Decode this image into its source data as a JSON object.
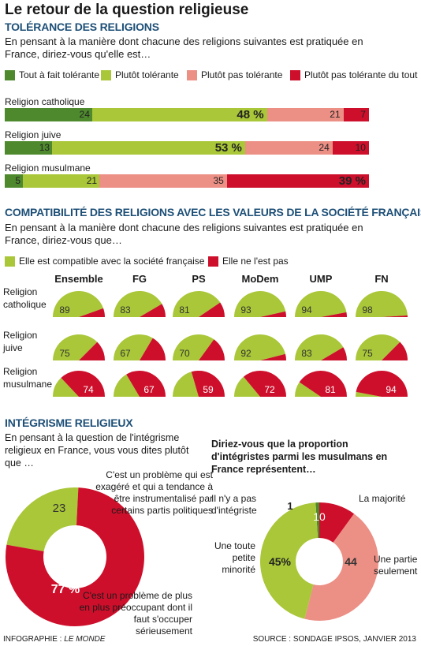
{
  "title": "Le retour de la question religieuse",
  "colors": {
    "dark_green": "#4e8a2d",
    "green": "#a9c738",
    "pink": "#ec8f85",
    "red": "#cd0f2b",
    "blue": "#1d4f77"
  },
  "section1": {
    "heading": "TOLÉRANCE DES RELIGIONS",
    "question": "En pensant à la manière dont chacune des religions suivantes est pratiquée en France, diriez-vous qu'elle est…",
    "legend": [
      "Tout à fait tolérante",
      "Plutôt tolérante",
      "Plutôt pas tolérante",
      "Plutôt pas tolérante du tout"
    ]
  },
  "section2": {
    "heading": "COMPATIBILITÉ DES RELIGIONS AVEC LES VALEURS DE LA SOCIÉTÉ FRANÇAISE",
    "question": "En pensant à la manière dont chacune des religions suivantes est pratiquée en France, diriez-vous que…",
    "legend": [
      "Elle est compatible avec la société française",
      "Elle ne l'est pas"
    ],
    "columns": [
      "Ensemble",
      "FG",
      "PS",
      "MoDem",
      "UMP",
      "FN"
    ],
    "rows": [
      "Religion catholique",
      "Religion juive",
      "Religion musulmane"
    ]
  },
  "section3": {
    "heading": "INTÉGRISME RELIGIEUX",
    "q1": "En pensant à la question de l'intégrisme religieux en France, vous vous dites plutôt que …",
    "q1_label_a": "C'est un problème qui est exagéré et qui a tendance à être instrumentalisé par certains partis politiques",
    "q1_label_b": "C'est un problème de plus en plus préoccupant dont il faut s'occuper sérieusement",
    "q2": "Diriez-vous que la proportion d'intégristes parmi les musulmans en France représentent…",
    "q2_labels": {
      "none": "Il n'y a pas d'intégriste",
      "majority": "La majorité",
      "minority": "Une toute petite minorité",
      "part": "Une partie seulement"
    }
  },
  "footer": {
    "left_prefix": "INFOGRAPHIE : ",
    "left_source": "LE MONDE",
    "right": "SOURCE : SONDAGE IPSOS, JANVIER 2013"
  },
  "chart_data": [
    {
      "type": "bar",
      "title": "TOLÉRANCE DES RELIGIONS",
      "categories": [
        "Religion catholique",
        "Religion juive",
        "Religion musulmane"
      ],
      "series": [
        {
          "name": "Tout à fait tolérante",
          "values": [
            24,
            13,
            5
          ]
        },
        {
          "name": "Plutôt tolérante",
          "values": [
            48,
            53,
            21
          ]
        },
        {
          "name": "Plutôt pas tolérante",
          "values": [
            21,
            24,
            35
          ]
        },
        {
          "name": "Plutôt pas tolérante du tout",
          "values": [
            7,
            10,
            39
          ]
        }
      ],
      "stacked": true,
      "highlight_labels": [
        "48 %",
        "53 %",
        "39 %"
      ]
    },
    {
      "type": "pie",
      "subtype": "semicircle-grid",
      "title": "COMPATIBILITÉ DES RELIGIONS AVEC LES VALEURS DE LA SOCIÉTÉ FRANÇAISE",
      "columns": [
        "Ensemble",
        "FG",
        "PS",
        "MoDem",
        "UMP",
        "FN"
      ],
      "rows": [
        "Religion catholique",
        "Religion juive",
        "Religion musulmane"
      ],
      "compatible": [
        [
          89,
          83,
          81,
          93,
          94,
          98
        ],
        [
          75,
          67,
          70,
          92,
          83,
          75
        ],
        [
          null,
          null,
          null,
          null,
          null,
          null
        ]
      ],
      "not_compatible": [
        [
          null,
          null,
          null,
          null,
          null,
          null
        ],
        [
          null,
          null,
          null,
          null,
          null,
          null
        ],
        [
          74,
          67,
          59,
          72,
          81,
          94
        ]
      ],
      "series": [
        {
          "name": "Elle est compatible avec la société française"
        },
        {
          "name": "Elle ne l'est pas"
        }
      ]
    },
    {
      "type": "pie",
      "subtype": "donut",
      "values": [
        23,
        77
      ],
      "labels": [
        "23",
        "77 %"
      ]
    },
    {
      "type": "pie",
      "subtype": "donut",
      "values": [
        1,
        10,
        44,
        45
      ],
      "labels": [
        "1",
        "10",
        "44",
        "45%"
      ]
    }
  ]
}
